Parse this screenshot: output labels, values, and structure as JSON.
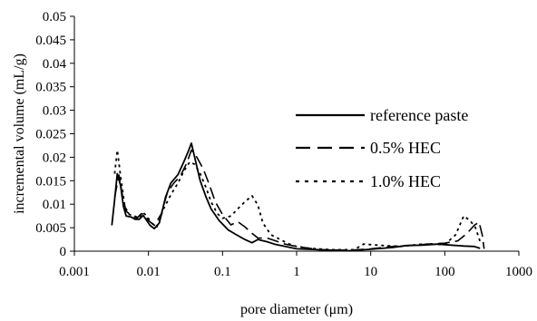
{
  "chart_data": {
    "type": "line",
    "title": "",
    "xlabel": "pore diameter (μm)",
    "ylabel": "incremental volume (mL/g)",
    "x_scale": "log",
    "xlim": [
      0.001,
      1000
    ],
    "ylim": [
      0,
      0.05
    ],
    "x_ticks": [
      "0.001",
      "0.01",
      "0.1",
      "1",
      "10",
      "100",
      "1000"
    ],
    "y_ticks": [
      "0",
      "0.005",
      "0.01",
      "0.015",
      "0.02",
      "0.025",
      "0.03",
      "0.035",
      "0.04",
      "0.045",
      "0.05"
    ],
    "grid": false,
    "legend_position": "right",
    "series": [
      {
        "name": "reference paste",
        "color": "#000000",
        "dash": "solid",
        "points": [
          [
            0.0032,
            0.0055
          ],
          [
            0.0035,
            0.011
          ],
          [
            0.0038,
            0.0165
          ],
          [
            0.0042,
            0.014
          ],
          [
            0.0046,
            0.0095
          ],
          [
            0.005,
            0.0075
          ],
          [
            0.0058,
            0.0073
          ],
          [
            0.0066,
            0.0068
          ],
          [
            0.0075,
            0.0068
          ],
          [
            0.0085,
            0.0076
          ],
          [
            0.0095,
            0.0065
          ],
          [
            0.0105,
            0.0055
          ],
          [
            0.012,
            0.0048
          ],
          [
            0.014,
            0.006
          ],
          [
            0.017,
            0.0115
          ],
          [
            0.02,
            0.0145
          ],
          [
            0.025,
            0.0163
          ],
          [
            0.03,
            0.019
          ],
          [
            0.035,
            0.0215
          ],
          [
            0.038,
            0.023
          ],
          [
            0.042,
            0.02
          ],
          [
            0.05,
            0.015
          ],
          [
            0.06,
            0.0115
          ],
          [
            0.07,
            0.009
          ],
          [
            0.09,
            0.0065
          ],
          [
            0.12,
            0.0045
          ],
          [
            0.15,
            0.0036
          ],
          [
            0.2,
            0.0025
          ],
          [
            0.25,
            0.0018
          ],
          [
            0.3,
            0.0025
          ],
          [
            0.4,
            0.002
          ],
          [
            0.5,
            0.0015
          ],
          [
            0.7,
            0.001
          ],
          [
            1,
            0.0005
          ],
          [
            2,
            0.0003
          ],
          [
            5,
            0.0001
          ],
          [
            10,
            0.0004
          ],
          [
            20,
            0.0008
          ],
          [
            30,
            0.0012
          ],
          [
            50,
            0.0013
          ],
          [
            80,
            0.0015
          ],
          [
            120,
            0.0013
          ],
          [
            180,
            0.0011
          ],
          [
            250,
            0.001
          ],
          [
            300,
            0.0006
          ]
        ]
      },
      {
        "name": "0.5% HEC",
        "color": "#000000",
        "dash": "dashed",
        "points": [
          [
            0.0035,
            0.0115
          ],
          [
            0.004,
            0.0162
          ],
          [
            0.0045,
            0.0115
          ],
          [
            0.005,
            0.0085
          ],
          [
            0.006,
            0.0075
          ],
          [
            0.007,
            0.007
          ],
          [
            0.008,
            0.008
          ],
          [
            0.009,
            0.0078
          ],
          [
            0.01,
            0.0065
          ],
          [
            0.012,
            0.0055
          ],
          [
            0.015,
            0.008
          ],
          [
            0.018,
            0.0125
          ],
          [
            0.022,
            0.0145
          ],
          [
            0.027,
            0.016
          ],
          [
            0.033,
            0.0188
          ],
          [
            0.038,
            0.0215
          ],
          [
            0.045,
            0.02
          ],
          [
            0.055,
            0.0175
          ],
          [
            0.065,
            0.0145
          ],
          [
            0.08,
            0.0105
          ],
          [
            0.1,
            0.0078
          ],
          [
            0.13,
            0.0056
          ],
          [
            0.16,
            0.0063
          ],
          [
            0.2,
            0.0052
          ],
          [
            0.25,
            0.0038
          ],
          [
            0.3,
            0.0028
          ],
          [
            0.4,
            0.0028
          ],
          [
            0.5,
            0.0023
          ],
          [
            0.7,
            0.0015
          ],
          [
            1,
            0.001
          ],
          [
            2,
            0.0003
          ],
          [
            5,
            0.0002
          ],
          [
            10,
            0.0005
          ],
          [
            20,
            0.001
          ],
          [
            40,
            0.0013
          ],
          [
            70,
            0.0016
          ],
          [
            100,
            0.0017
          ],
          [
            150,
            0.0022
          ],
          [
            200,
            0.0038
          ],
          [
            250,
            0.0055
          ],
          [
            290,
            0.0062
          ],
          [
            320,
            0.0035
          ],
          [
            340,
            0.0005
          ]
        ]
      },
      {
        "name": "1.0% HEC",
        "color": "#000000",
        "dash": "dotted",
        "points": [
          [
            0.0035,
            0.0165
          ],
          [
            0.0038,
            0.0215
          ],
          [
            0.0042,
            0.016
          ],
          [
            0.0048,
            0.0095
          ],
          [
            0.0055,
            0.0078
          ],
          [
            0.0065,
            0.0075
          ],
          [
            0.0075,
            0.007
          ],
          [
            0.0085,
            0.0082
          ],
          [
            0.0095,
            0.0075
          ],
          [
            0.011,
            0.006
          ],
          [
            0.013,
            0.0052
          ],
          [
            0.016,
            0.009
          ],
          [
            0.02,
            0.012
          ],
          [
            0.025,
            0.0145
          ],
          [
            0.03,
            0.017
          ],
          [
            0.036,
            0.019
          ],
          [
            0.042,
            0.0185
          ],
          [
            0.05,
            0.0165
          ],
          [
            0.06,
            0.0135
          ],
          [
            0.07,
            0.0105
          ],
          [
            0.085,
            0.008
          ],
          [
            0.1,
            0.007
          ],
          [
            0.13,
            0.0075
          ],
          [
            0.16,
            0.009
          ],
          [
            0.2,
            0.0105
          ],
          [
            0.25,
            0.0118
          ],
          [
            0.3,
            0.0098
          ],
          [
            0.35,
            0.006
          ],
          [
            0.45,
            0.0035
          ],
          [
            0.6,
            0.0025
          ],
          [
            0.8,
            0.0015
          ],
          [
            1,
            0.001
          ],
          [
            1.5,
            0.0006
          ],
          [
            3,
            0.0003
          ],
          [
            6,
            0.0003
          ],
          [
            8,
            0.0015
          ],
          [
            15,
            0.0012
          ],
          [
            25,
            0.001
          ],
          [
            50,
            0.0015
          ],
          [
            100,
            0.0014
          ],
          [
            140,
            0.0035
          ],
          [
            180,
            0.0075
          ],
          [
            220,
            0.0065
          ],
          [
            260,
            0.005
          ],
          [
            300,
            0.002
          ]
        ]
      }
    ]
  }
}
